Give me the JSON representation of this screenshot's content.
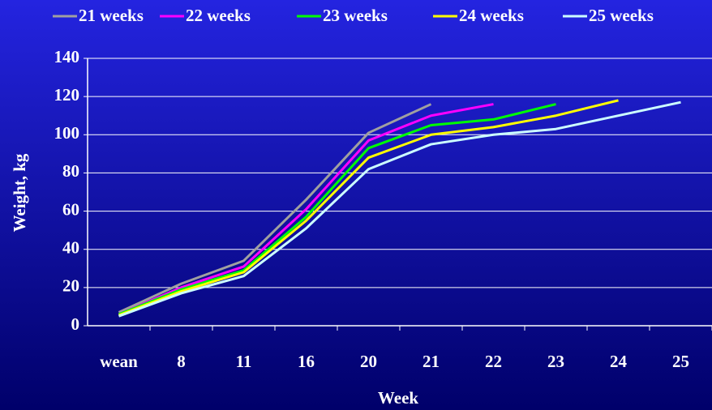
{
  "chart_data": {
    "type": "line",
    "xlabel": "Week",
    "ylabel": "Weight, kg",
    "categories": [
      "wean",
      "8",
      "11",
      "16",
      "20",
      "21",
      "22",
      "23",
      "24",
      "25"
    ],
    "series": [
      {
        "name": "21 weeks",
        "color": "#a0a0a0",
        "values": [
          7,
          22,
          34,
          66,
          101,
          116,
          null,
          null,
          null,
          null
        ]
      },
      {
        "name": "22 weeks",
        "color": "#ff00ff",
        "values": [
          6,
          20,
          31,
          61,
          97,
          110,
          116,
          null,
          null,
          null
        ]
      },
      {
        "name": "23 weeks",
        "color": "#00ff00",
        "values": [
          6,
          19,
          29,
          57,
          93,
          105,
          108,
          116,
          null,
          null
        ]
      },
      {
        "name": "24 weeks",
        "color": "#ffff00",
        "values": [
          5.5,
          18,
          28,
          55,
          88,
          100,
          104,
          110,
          118,
          null
        ]
      },
      {
        "name": "25 weeks",
        "color": "#ccffff",
        "values": [
          5,
          17,
          26,
          51,
          82,
          95,
          100,
          103,
          110,
          117
        ]
      }
    ],
    "ylim": [
      0,
      140
    ],
    "yticks": [
      0,
      20,
      40,
      60,
      80,
      100,
      120,
      140
    ],
    "grid": true,
    "legend": "top"
  }
}
